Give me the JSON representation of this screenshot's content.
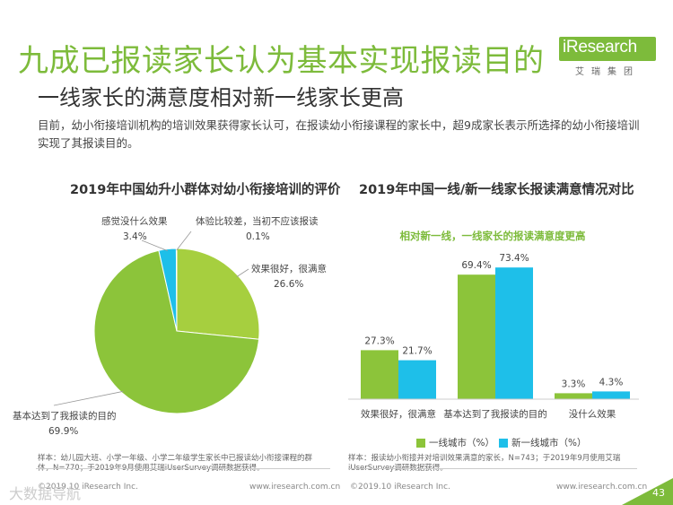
{
  "header": {
    "title": "九成已报读家长认为基本实现报读目的",
    "subtitle": "一线家长的满意度相对新一线家长更高",
    "logo_text": "iResearch",
    "logo_sub": "艾瑞集团"
  },
  "intro": "目前，幼小衔接培训机构的培训效果获得家长认可，在报读幼小衔接课程的家长中，超9成家长表示所选择的幼小衔接培训实现了其报读目的。",
  "pie_chart": {
    "title": "2019年中国幼升小群体对幼小衔接培训的评价",
    "note": "样本：幼儿园大班、小学一年级、小学二年级学生家长中已报读幼小衔接课程的群体，N=770；于2019年9月使用艾瑞iUserSurvey调研数据获得。"
  },
  "bar_chart": {
    "title": "2019年中国一线/新一线家长报读满意情况对比",
    "annotation": "相对新一线，一线家长的报读满意度更高",
    "note": "样本：报读幼小衔接并对培训效果满意的家长，N=743；于2019年9月使用艾瑞iUserSurvey调研数据获得。"
  },
  "chart_data": [
    {
      "type": "pie",
      "title": "2019年中国幼升小群体对幼小衔接培训的评价",
      "slices": [
        {
          "label": "效果很好，很满意",
          "value": 26.6,
          "display": "26.6%",
          "color": "#a6cf3f"
        },
        {
          "label": "基本达到了我报读的目的",
          "value": 69.9,
          "display": "69.9%",
          "color": "#8cc43a"
        },
        {
          "label": "感觉没什么效果",
          "value": 3.4,
          "display": "3.4%",
          "color": "#1ebfe9"
        },
        {
          "label": "体验比较差，当初不应该报读",
          "value": 0.1,
          "display": "0.1%",
          "color": "#0e8fc4"
        }
      ]
    },
    {
      "type": "bar",
      "title": "2019年中国一线/新一线家长报读满意情况对比",
      "categories": [
        "效果很好，很满意",
        "基本达到了我报读的目的",
        "没什么效果"
      ],
      "series": [
        {
          "name": "一线城市（%）",
          "values": [
            27.3,
            69.4,
            3.3
          ],
          "labels": [
            "27.3%",
            "69.4%",
            "3.3%"
          ],
          "color": "#8cc43a"
        },
        {
          "name": "新一线城市（%）",
          "values": [
            21.7,
            73.4,
            4.3
          ],
          "labels": [
            "21.7%",
            "73.4%",
            "4.3%"
          ],
          "color": "#1ebfe9"
        }
      ],
      "ylim": [
        0,
        80
      ]
    }
  ],
  "footer": {
    "copyright": "©2019.10 iResearch Inc.",
    "url": "www.iresearch.com.cn",
    "page": "43",
    "watermark": "大数据导航"
  },
  "colors": {
    "accent": "#7dbb3b",
    "green": "#8cc43a",
    "blue": "#1ebfe9"
  }
}
